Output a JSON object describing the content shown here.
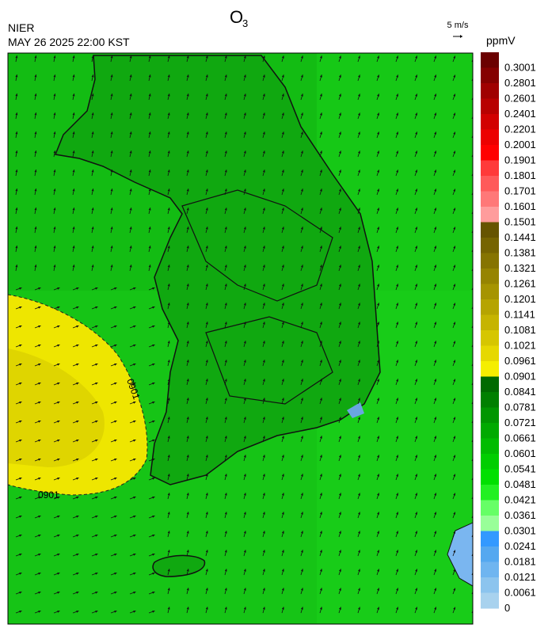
{
  "header": {
    "title": "O",
    "title_subscript": "3",
    "agency": "NIER",
    "timestamp": "MAY 26 2025 22:00 KST",
    "wind_scale": "5 m/s"
  },
  "map": {
    "contour_labels": [
      "0901",
      "0901"
    ]
  },
  "legend": {
    "unit": "ppmV",
    "items": [
      {
        "label": "0.3001",
        "color": "#6b0000"
      },
      {
        "label": "0.2801",
        "color": "#850000"
      },
      {
        "label": "0.2601",
        "color": "#a00000"
      },
      {
        "label": "0.2401",
        "color": "#b80000"
      },
      {
        "label": "0.2201",
        "color": "#d20000"
      },
      {
        "label": "0.2001",
        "color": "#ec0000"
      },
      {
        "label": "0.1901",
        "color": "#ff0000"
      },
      {
        "label": "0.1801",
        "color": "#ff3a3a"
      },
      {
        "label": "0.1701",
        "color": "#ff5a5a"
      },
      {
        "label": "0.1601",
        "color": "#ff7878"
      },
      {
        "label": "0.1501",
        "color": "#ff9c9c"
      },
      {
        "label": "0.1441",
        "color": "#665400"
      },
      {
        "label": "0.1381",
        "color": "#766400"
      },
      {
        "label": "0.1321",
        "color": "#867400"
      },
      {
        "label": "0.1261",
        "color": "#968400"
      },
      {
        "label": "0.1201",
        "color": "#a69400"
      },
      {
        "label": "0.1141",
        "color": "#b6a400"
      },
      {
        "label": "0.1081",
        "color": "#c6b400"
      },
      {
        "label": "0.1021",
        "color": "#d6c600"
      },
      {
        "label": "0.0961",
        "color": "#e6d800"
      },
      {
        "label": "0.0901",
        "color": "#f5ee00"
      },
      {
        "label": "0.0841",
        "color": "#006a00"
      },
      {
        "label": "0.0781",
        "color": "#008000"
      },
      {
        "label": "0.0721",
        "color": "#009600"
      },
      {
        "label": "0.0661",
        "color": "#00aa00"
      },
      {
        "label": "0.0601",
        "color": "#00bc00"
      },
      {
        "label": "0.0541",
        "color": "#00ce00"
      },
      {
        "label": "0.0481",
        "color": "#00e000"
      },
      {
        "label": "0.0421",
        "color": "#22f022"
      },
      {
        "label": "0.0361",
        "color": "#66ff66"
      },
      {
        "label": "0.0301",
        "color": "#99ff99"
      },
      {
        "label": "0.0241",
        "color": "#3399ff"
      },
      {
        "label": "0.0181",
        "color": "#55a8f0"
      },
      {
        "label": "0.0121",
        "color": "#6fb5f0"
      },
      {
        "label": "0.0061",
        "color": "#8cc4ee"
      },
      {
        "label": "0",
        "color": "#a8d2ee"
      }
    ]
  }
}
